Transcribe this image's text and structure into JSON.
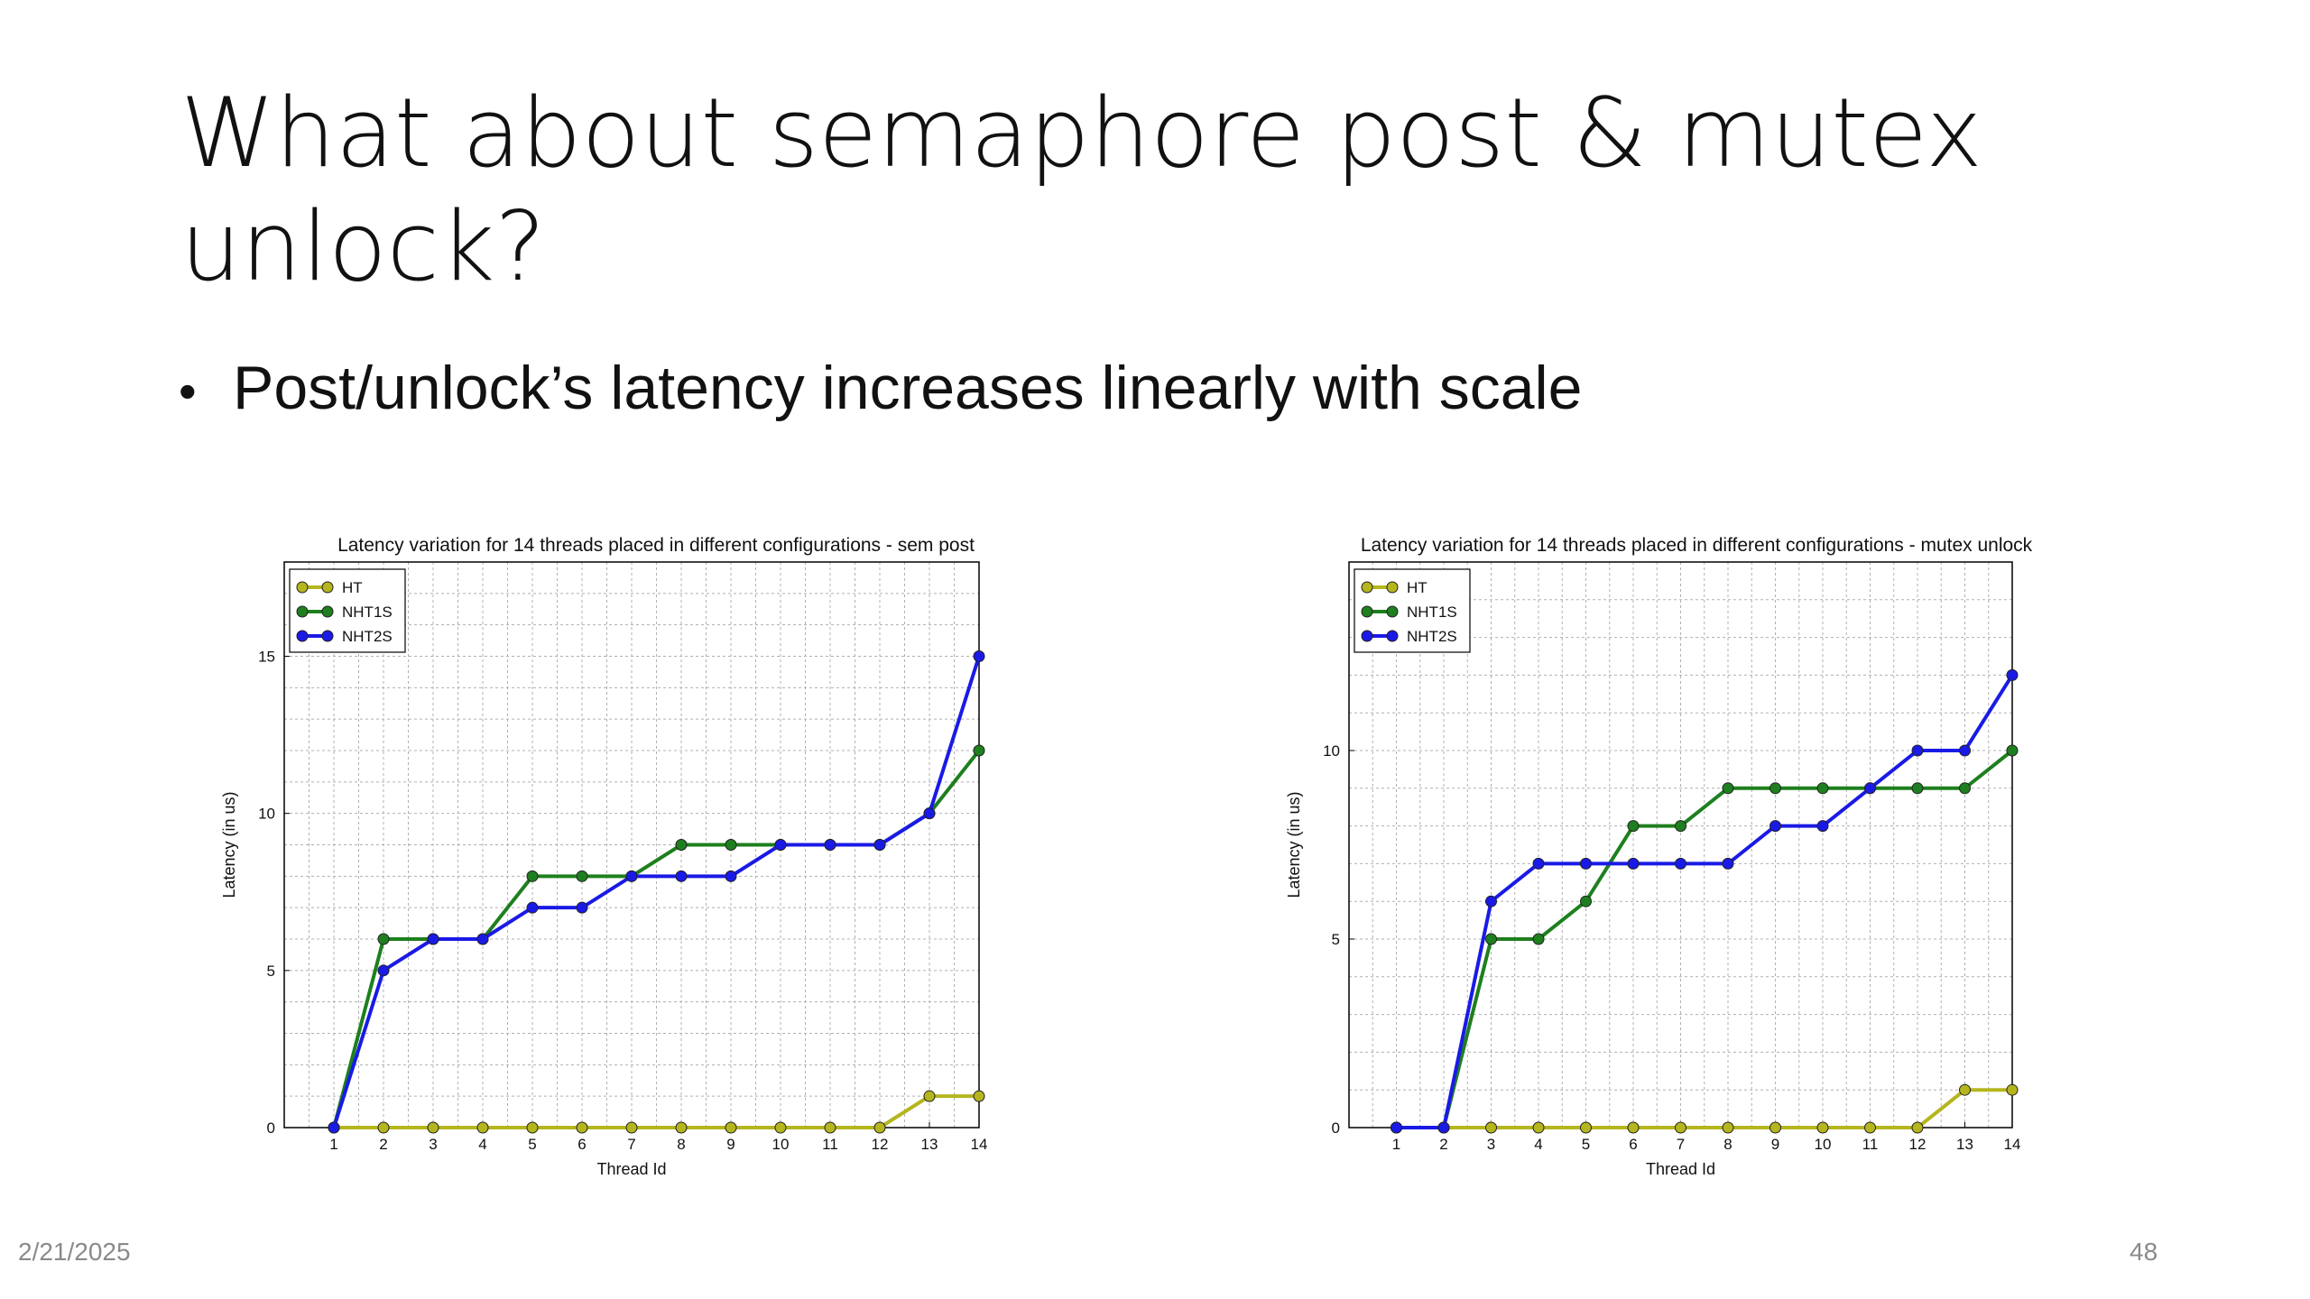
{
  "slide": {
    "title": "What about semaphore post & mutex unlock?",
    "bullet": "Post/unlock’s latency increases linearly with scale",
    "date": "2/21/2025",
    "page_number": "48"
  },
  "colors": {
    "HT": "#b5b51e",
    "NHT1S": "#1e7f1e",
    "NHT2S": "#1a1ae6",
    "grid": "#b0b0b0"
  },
  "chart_data": [
    {
      "type": "line",
      "title": "Latency variation for 14 threads placed in different configurations - sem post",
      "xlabel": "Thread Id",
      "ylabel": "Latency (in us)",
      "x": [
        1,
        2,
        3,
        4,
        5,
        6,
        7,
        8,
        9,
        10,
        11,
        12,
        13,
        14
      ],
      "xlim": [
        0,
        14
      ],
      "ylim": [
        0,
        18
      ],
      "yticks": [
        0,
        5,
        10,
        15
      ],
      "grid": true,
      "legend_position": "top-left",
      "series": [
        {
          "name": "HT",
          "values": [
            0,
            0,
            0,
            0,
            0,
            0,
            0,
            0,
            0,
            0,
            0,
            0,
            1,
            1
          ]
        },
        {
          "name": "NHT1S",
          "values": [
            0,
            6,
            6,
            6,
            8,
            8,
            8,
            9,
            9,
            9,
            9,
            9,
            10,
            12
          ]
        },
        {
          "name": "NHT2S",
          "values": [
            0,
            5,
            6,
            6,
            7,
            7,
            8,
            8,
            8,
            9,
            9,
            9,
            10,
            15
          ]
        }
      ]
    },
    {
      "type": "line",
      "title": "Latency variation for 14 threads placed in different configurations - mutex unlock",
      "xlabel": "Thread Id",
      "ylabel": "Latency (in us)",
      "x": [
        1,
        2,
        3,
        4,
        5,
        6,
        7,
        8,
        9,
        10,
        11,
        12,
        13,
        14
      ],
      "xlim": [
        0,
        14
      ],
      "ylim": [
        0,
        15
      ],
      "yticks": [
        0,
        5,
        10
      ],
      "grid": true,
      "legend_position": "top-left",
      "series": [
        {
          "name": "HT",
          "values": [
            0,
            0,
            0,
            0,
            0,
            0,
            0,
            0,
            0,
            0,
            0,
            0,
            1,
            1
          ]
        },
        {
          "name": "NHT1S",
          "values": [
            0,
            0,
            5,
            5,
            6,
            8,
            8,
            9,
            9,
            9,
            9,
            9,
            9,
            10
          ]
        },
        {
          "name": "NHT2S",
          "values": [
            0,
            0,
            6,
            7,
            7,
            7,
            7,
            7,
            8,
            8,
            9,
            10,
            10,
            12
          ]
        }
      ]
    }
  ]
}
